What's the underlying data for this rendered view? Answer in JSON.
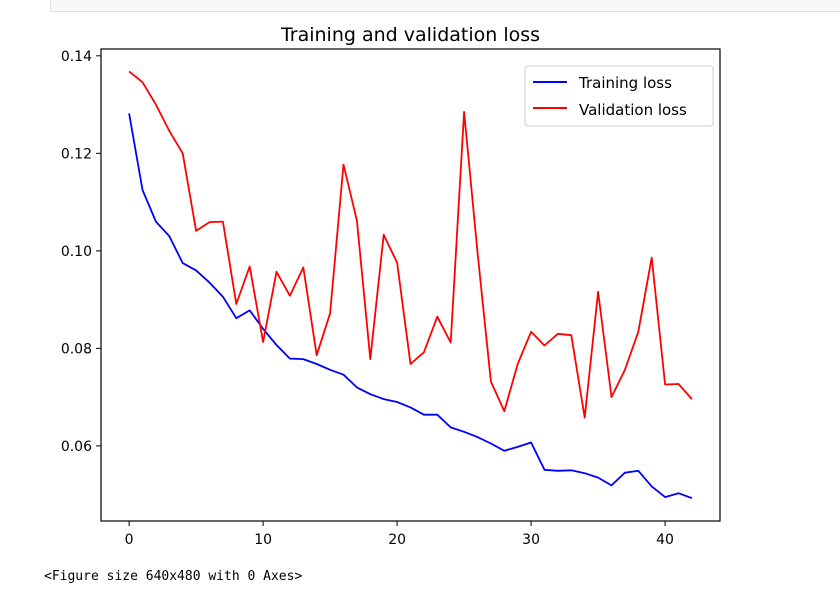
{
  "output_footer": "<Figure size 640x480 with 0 Axes>",
  "colors": {
    "training": "#0000ff",
    "validation": "#ff0000"
  },
  "chart_data": {
    "type": "line",
    "title": "Training and validation loss",
    "xlabel": "",
    "ylabel": "",
    "xlim": [
      -2.1,
      44.1
    ],
    "ylim": [
      0.0446,
      0.1414
    ],
    "x_ticks": [
      0,
      10,
      20,
      30,
      40
    ],
    "y_ticks": [
      0.06,
      0.08,
      0.1,
      0.12,
      0.14
    ],
    "x_tick_labels": [
      "0",
      "10",
      "20",
      "30",
      "40"
    ],
    "y_tick_labels": [
      "0.06",
      "0.08",
      "0.10",
      "0.12",
      "0.14"
    ],
    "grid": false,
    "legend_position": "top-right",
    "x": [
      0,
      1,
      2,
      3,
      4,
      5,
      6,
      7,
      8,
      9,
      10,
      11,
      12,
      13,
      14,
      15,
      16,
      17,
      18,
      19,
      20,
      21,
      22,
      23,
      24,
      25,
      26,
      27,
      28,
      29,
      30,
      31,
      32,
      33,
      34,
      35,
      36,
      37,
      38,
      39,
      40,
      41,
      42
    ],
    "series": [
      {
        "name": "Training loss",
        "color": "#0000ff",
        "values": [
          0.1282,
          0.1125,
          0.106,
          0.103,
          0.0975,
          0.096,
          0.0935,
          0.0906,
          0.0862,
          0.0878,
          0.084,
          0.0807,
          0.0779,
          0.0778,
          0.0768,
          0.0756,
          0.0746,
          0.072,
          0.0706,
          0.0696,
          0.069,
          0.0679,
          0.0664,
          0.0664,
          0.0638,
          0.0629,
          0.0618,
          0.0605,
          0.059,
          0.0598,
          0.0607,
          0.0551,
          0.0549,
          0.055,
          0.0544,
          0.0535,
          0.0519,
          0.0545,
          0.0549,
          0.0517,
          0.0495,
          0.0503,
          0.0493
        ]
      },
      {
        "name": "Validation loss",
        "color": "#ff0000",
        "values": [
          0.1368,
          0.1346,
          0.13,
          0.1246,
          0.12,
          0.1041,
          0.1059,
          0.106,
          0.0891,
          0.0968,
          0.0813,
          0.0957,
          0.0908,
          0.0966,
          0.0786,
          0.0872,
          0.1177,
          0.1062,
          0.0778,
          0.1033,
          0.0976,
          0.0768,
          0.0792,
          0.0865,
          0.0812,
          0.1285,
          0.0997,
          0.0732,
          0.0671,
          0.0768,
          0.0834,
          0.0806,
          0.083,
          0.0827,
          0.0658,
          0.0916,
          0.07,
          0.0756,
          0.0834,
          0.0986,
          0.0726,
          0.0727,
          0.0696
        ]
      }
    ]
  }
}
